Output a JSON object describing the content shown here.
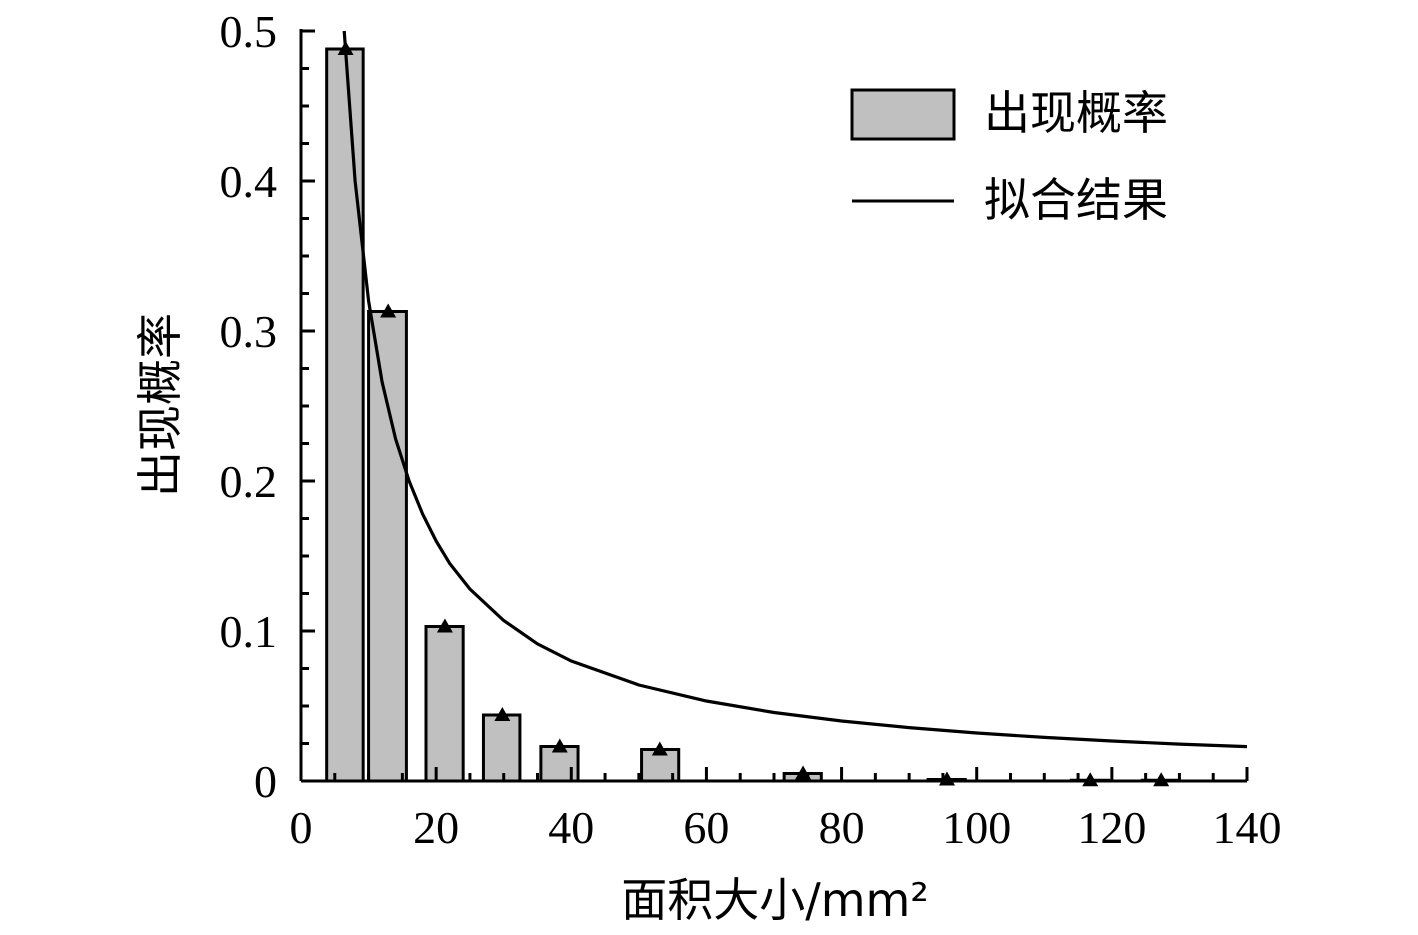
{
  "chart_data": {
    "type": "bar",
    "xlabel": "面积大小/mm²",
    "ylabel": "出现概率",
    "xlim": [
      0,
      140
    ],
    "ylim": [
      0,
      0.5
    ],
    "xticks": [
      0,
      20,
      40,
      60,
      80,
      100,
      120,
      140
    ],
    "xtick_labels": [
      "0",
      "20",
      "40",
      "60",
      "80",
      "100",
      "120",
      "140"
    ],
    "yticks": [
      0,
      0.1,
      0.2,
      0.3,
      0.4,
      0.5
    ],
    "ytick_labels": [
      "0",
      "0.1",
      "0.2",
      "0.3",
      "0.4",
      "0.5"
    ],
    "grid": false,
    "legend_position": "top-right",
    "bar_color": "#c0c0c0",
    "line_color": "#000000",
    "series": [
      {
        "name": "出现概率",
        "type": "bar",
        "bars": [
          {
            "x0": 3.8,
            "x1": 9.2,
            "value": 0.488
          },
          {
            "x0": 10.0,
            "x1": 15.6,
            "value": 0.313
          },
          {
            "x0": 18.5,
            "x1": 24.0,
            "value": 0.103
          },
          {
            "x0": 27.0,
            "x1": 32.4,
            "value": 0.044
          },
          {
            "x0": 35.5,
            "x1": 41.0,
            "value": 0.023
          },
          {
            "x0": 50.4,
            "x1": 55.9,
            "value": 0.021
          },
          {
            "x0": 71.5,
            "x1": 77.0,
            "value": 0.005
          },
          {
            "x0": 92.8,
            "x1": 98.3,
            "value": 0.001
          },
          {
            "x0": 114.0,
            "x1": 119.5,
            "value": 0.0005
          },
          {
            "x0": 124.5,
            "x1": 130.0,
            "value": 0.0005
          }
        ],
        "markers": [
          {
            "x": 6.6,
            "y": 0.488
          },
          {
            "x": 12.9,
            "y": 0.313
          },
          {
            "x": 21.3,
            "y": 0.103
          },
          {
            "x": 29.8,
            "y": 0.044
          },
          {
            "x": 38.3,
            "y": 0.023
          },
          {
            "x": 53.1,
            "y": 0.021
          },
          {
            "x": 74.3,
            "y": 0.005
          },
          {
            "x": 95.6,
            "y": 0.001
          },
          {
            "x": 116.8,
            "y": 0.0005
          },
          {
            "x": 127.3,
            "y": 0.0005
          }
        ]
      },
      {
        "name": "拟合结果",
        "type": "line",
        "x": [
          6.4,
          8,
          10,
          12,
          14,
          16,
          18,
          20,
          22,
          25,
          30,
          35,
          40,
          50,
          60,
          70,
          80,
          90,
          100,
          110,
          120,
          130,
          140
        ],
        "values": [
          0.5,
          0.4,
          0.32,
          0.266,
          0.228,
          0.2,
          0.178,
          0.16,
          0.145,
          0.128,
          0.107,
          0.0914,
          0.08,
          0.064,
          0.0533,
          0.0457,
          0.04,
          0.0356,
          0.032,
          0.0291,
          0.0267,
          0.0246,
          0.0229
        ]
      }
    ]
  }
}
